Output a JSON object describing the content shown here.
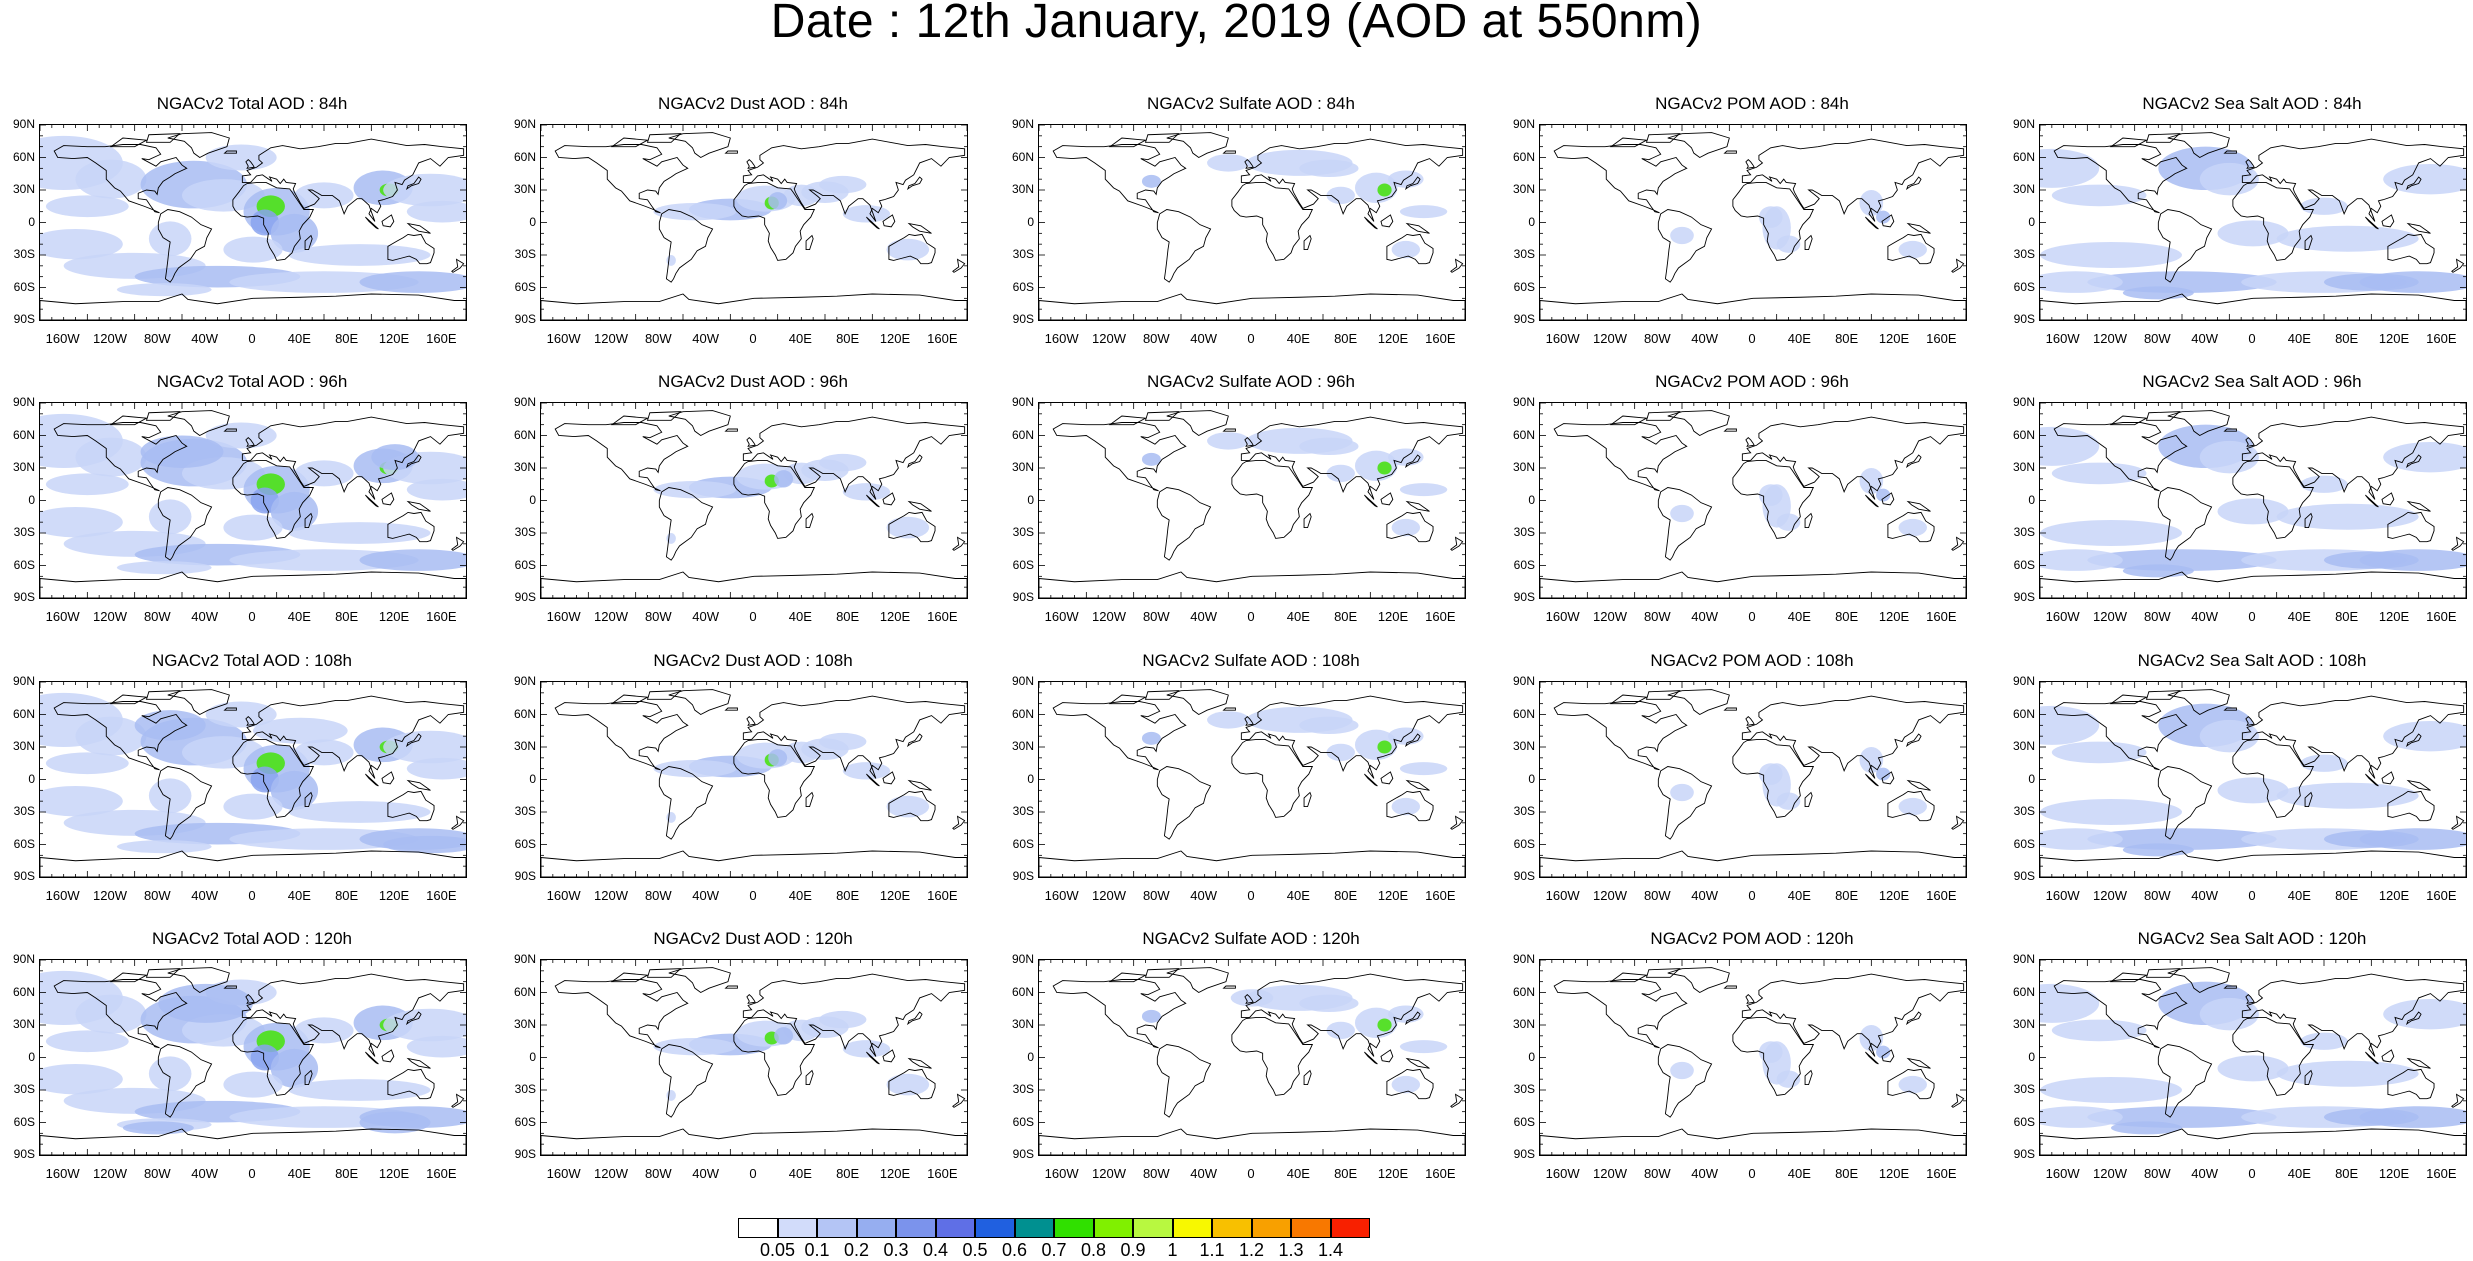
{
  "title": "Date : 12th January, 2019 (AOD at 550nm)",
  "lat_ticks": [
    "90N",
    "60N",
    "30N",
    "0",
    "30S",
    "60S",
    "90S"
  ],
  "lon_ticks": [
    "160W",
    "120W",
    "80W",
    "40W",
    "0",
    "40E",
    "80E",
    "120E",
    "160E"
  ],
  "panels": [
    [
      "NGACv2 Total AOD : 84h",
      "NGACv2 Dust AOD : 84h",
      "NGACv2 Sulfate AOD : 84h",
      "NGACv2 POM AOD : 84h",
      "NGACv2 Sea Salt AOD : 84h"
    ],
    [
      "NGACv2 Total AOD : 96h",
      "NGACv2 Dust AOD : 96h",
      "NGACv2 Sulfate AOD : 96h",
      "NGACv2 POM AOD : 96h",
      "NGACv2 Sea Salt AOD : 96h"
    ],
    [
      "NGACv2 Total AOD : 108h",
      "NGACv2 Dust AOD : 108h",
      "NGACv2 Sulfate AOD : 108h",
      "NGACv2 POM AOD : 108h",
      "NGACv2 Sea Salt AOD : 108h"
    ],
    [
      "NGACv2 Total AOD : 120h",
      "NGACv2 Dust AOD : 120h",
      "NGACv2 Sulfate AOD : 120h",
      "NGACv2 POM AOD : 120h",
      "NGACv2 Sea Salt  AOD : 120h"
    ]
  ],
  "colorbar": {
    "labels": [
      "0.05",
      "0.1",
      "0.2",
      "0.3",
      "0.4",
      "0.5",
      "0.6",
      "0.7",
      "0.8",
      "0.9",
      "1",
      "1.1",
      "1.2",
      "1.3",
      "1.4"
    ],
    "colors": [
      "#ffffff",
      "#d2dcfa",
      "#b4c5f5",
      "#96aef0",
      "#7b93ec",
      "#5f6fe6",
      "#2060e0",
      "#009090",
      "#30e000",
      "#80f000",
      "#b8f840",
      "#f8f800",
      "#f8c000",
      "#f8a000",
      "#f87800",
      "#f82000"
    ]
  }
}
